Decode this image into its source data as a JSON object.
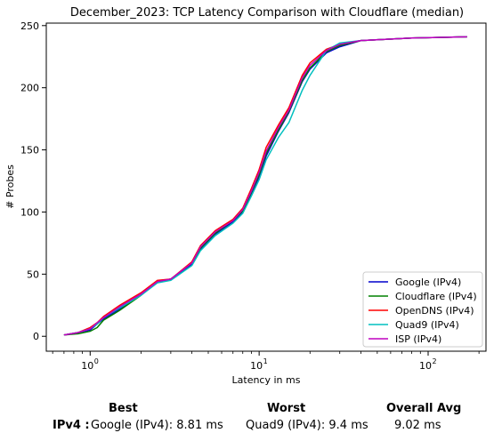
{
  "chart_data": {
    "type": "line",
    "title": "December_2023: TCP Latency Comparison with Cloudflare (median)",
    "xlabel": "Latency in ms",
    "ylabel": "# Probes",
    "xscale": "log",
    "xlim": [
      0.55,
      220
    ],
    "ylim": [
      -12,
      252
    ],
    "xticks": [
      1,
      10,
      100
    ],
    "xtick_labels": [
      "10",
      "10",
      "10"
    ],
    "xtick_exponents": [
      "0",
      "1",
      "2"
    ],
    "yticks": [
      0,
      50,
      100,
      150,
      200,
      250
    ],
    "legend_position": "lower-right",
    "grid": false,
    "series": [
      {
        "name": "Google (IPv4)",
        "color": "#0000cc",
        "points": [
          [
            0.7,
            1
          ],
          [
            0.85,
            3
          ],
          [
            1.0,
            5
          ],
          [
            1.1,
            10
          ],
          [
            1.2,
            14
          ],
          [
            1.5,
            22
          ],
          [
            2.0,
            34
          ],
          [
            2.5,
            44
          ],
          [
            3.0,
            46
          ],
          [
            4.0,
            58
          ],
          [
            4.5,
            70
          ],
          [
            5.5,
            82
          ],
          [
            7.0,
            92
          ],
          [
            8.0,
            100
          ],
          [
            9.0,
            115
          ],
          [
            10.0,
            128
          ],
          [
            11.0,
            145
          ],
          [
            13.0,
            165
          ],
          [
            15.0,
            180
          ],
          [
            18.0,
            205
          ],
          [
            20.0,
            215
          ],
          [
            25.0,
            228
          ],
          [
            30.0,
            233
          ],
          [
            40.0,
            238
          ],
          [
            80.0,
            240
          ],
          [
            170.0,
            241
          ]
        ]
      },
      {
        "name": "Cloudflare (IPv4)",
        "color": "#008000",
        "points": [
          [
            0.7,
            1
          ],
          [
            0.85,
            2
          ],
          [
            1.0,
            4
          ],
          [
            1.1,
            7
          ],
          [
            1.2,
            13
          ],
          [
            1.5,
            21
          ],
          [
            2.0,
            33
          ],
          [
            2.5,
            44
          ],
          [
            3.0,
            46
          ],
          [
            4.0,
            59
          ],
          [
            4.5,
            71
          ],
          [
            5.5,
            83
          ],
          [
            7.0,
            93
          ],
          [
            8.0,
            101
          ],
          [
            9.0,
            116
          ],
          [
            10.0,
            130
          ],
          [
            11.0,
            147
          ],
          [
            13.0,
            166
          ],
          [
            15.0,
            181
          ],
          [
            18.0,
            206
          ],
          [
            20.0,
            216
          ],
          [
            25.0,
            229
          ],
          [
            30.0,
            234
          ],
          [
            40.0,
            238
          ],
          [
            80.0,
            240
          ],
          [
            170.0,
            241
          ]
        ]
      },
      {
        "name": "OpenDNS (IPv4)",
        "color": "#ff0000",
        "points": [
          [
            0.7,
            1
          ],
          [
            0.85,
            3
          ],
          [
            1.0,
            7
          ],
          [
            1.1,
            11
          ],
          [
            1.2,
            16
          ],
          [
            1.5,
            25
          ],
          [
            2.0,
            35
          ],
          [
            2.5,
            45
          ],
          [
            3.0,
            46
          ],
          [
            4.0,
            60
          ],
          [
            4.5,
            73
          ],
          [
            5.5,
            85
          ],
          [
            7.0,
            94
          ],
          [
            8.0,
            103
          ],
          [
            9.0,
            119
          ],
          [
            10.0,
            134
          ],
          [
            11.0,
            152
          ],
          [
            13.0,
            170
          ],
          [
            15.0,
            184
          ],
          [
            18.0,
            210
          ],
          [
            20.0,
            220
          ],
          [
            25.0,
            231
          ],
          [
            30.0,
            235
          ],
          [
            40.0,
            238
          ],
          [
            80.0,
            240
          ],
          [
            170.0,
            241
          ]
        ]
      },
      {
        "name": "Quad9 (IPv4)",
        "color": "#00bfbf",
        "points": [
          [
            0.7,
            1
          ],
          [
            0.85,
            3
          ],
          [
            1.0,
            6
          ],
          [
            1.1,
            10
          ],
          [
            1.2,
            15
          ],
          [
            1.5,
            23
          ],
          [
            2.0,
            33
          ],
          [
            2.5,
            43
          ],
          [
            3.0,
            45
          ],
          [
            4.0,
            57
          ],
          [
            4.5,
            69
          ],
          [
            5.5,
            81
          ],
          [
            7.0,
            91
          ],
          [
            8.0,
            99
          ],
          [
            9.0,
            113
          ],
          [
            10.0,
            126
          ],
          [
            11.0,
            142
          ],
          [
            13.0,
            160
          ],
          [
            15.0,
            172
          ],
          [
            18.0,
            198
          ],
          [
            20.0,
            210
          ],
          [
            25.0,
            230
          ],
          [
            30.0,
            236
          ],
          [
            40.0,
            238
          ],
          [
            80.0,
            240
          ],
          [
            170.0,
            241
          ]
        ]
      },
      {
        "name": "ISP (IPv4)",
        "color": "#bf00bf",
        "points": [
          [
            0.7,
            1
          ],
          [
            0.85,
            3
          ],
          [
            1.0,
            6
          ],
          [
            1.1,
            11
          ],
          [
            1.2,
            15
          ],
          [
            1.5,
            24
          ],
          [
            2.0,
            34
          ],
          [
            2.5,
            44
          ],
          [
            3.0,
            46
          ],
          [
            4.0,
            59
          ],
          [
            4.5,
            72
          ],
          [
            5.5,
            84
          ],
          [
            7.0,
            93
          ],
          [
            8.0,
            102
          ],
          [
            9.0,
            117
          ],
          [
            10.0,
            132
          ],
          [
            11.0,
            149
          ],
          [
            13.0,
            168
          ],
          [
            15.0,
            182
          ],
          [
            18.0,
            208
          ],
          [
            20.0,
            218
          ],
          [
            25.0,
            230
          ],
          [
            30.0,
            235
          ],
          [
            40.0,
            238
          ],
          [
            80.0,
            240
          ],
          [
            170.0,
            241
          ]
        ]
      }
    ]
  },
  "summary": {
    "best_header": "Best",
    "worst_header": "Worst",
    "avg_header": "Overall Avg",
    "row_label": "IPv4 :",
    "best_value": "Google (IPv4): 8.81 ms",
    "worst_value": "Quad9 (IPv4): 9.4 ms",
    "avg_value": "9.02 ms"
  }
}
